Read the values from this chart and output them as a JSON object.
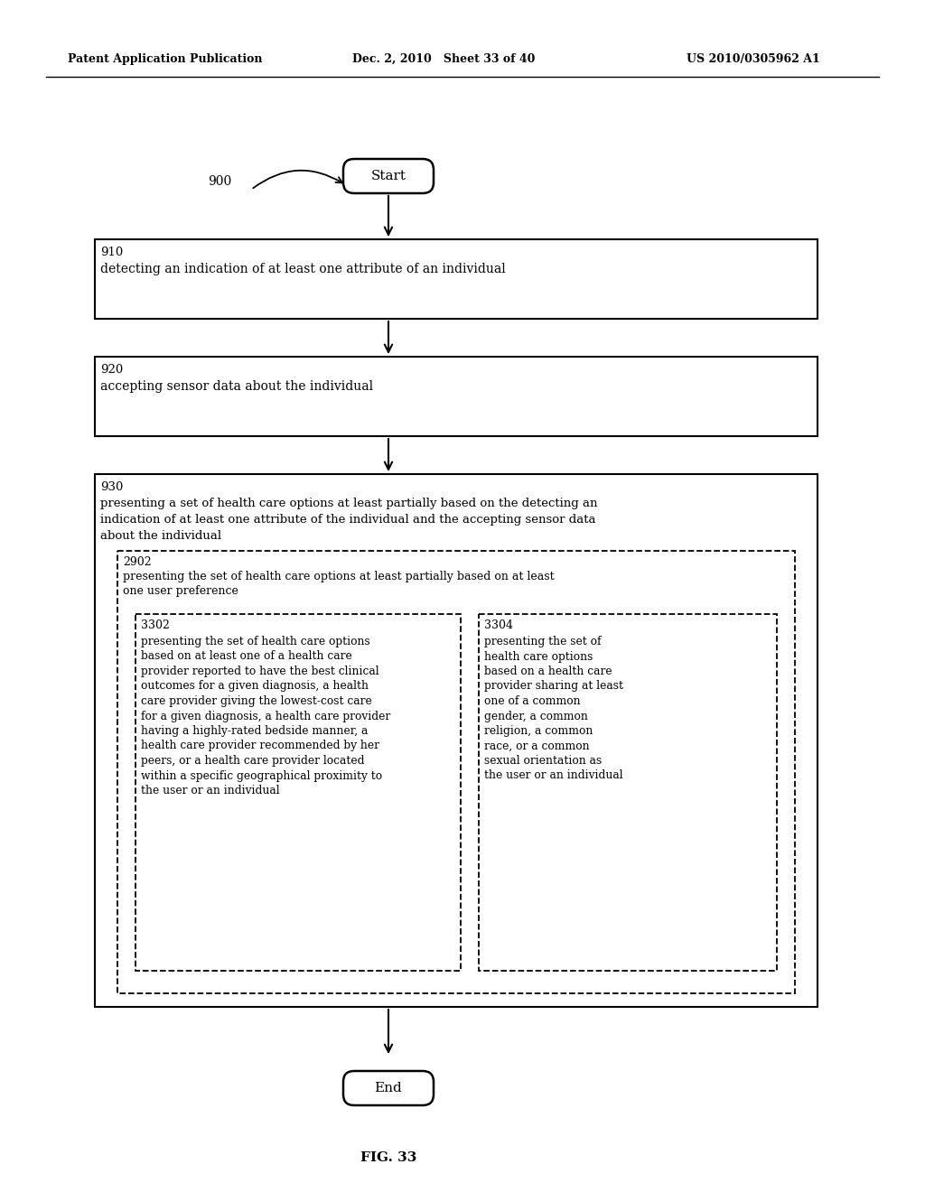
{
  "header_left": "Patent Application Publication",
  "header_mid": "Dec. 2, 2010   Sheet 33 of 40",
  "header_right": "US 2010/0305962 A1",
  "fig_label": "FIG. 33",
  "label_900": "900",
  "start_text": "Start",
  "end_text": "End",
  "box910_label": "910",
  "box910_text": "detecting an indication of at least one attribute of an individual",
  "box920_label": "920",
  "box920_text": "accepting sensor data about the individual",
  "box930_label": "930",
  "box930_text1": "presenting a set of health care options at least partially based on the detecting an",
  "box930_text2": "indication of at least one attribute of the individual and the accepting sensor data",
  "box930_text3": "about the individual",
  "box2902_label": "2902",
  "box2902_text1": "presenting the set of health care options at least partially based on at least",
  "box2902_text2": "one user preference",
  "box3302_label": "3302",
  "box3302_lines": [
    "presenting the set of health care options",
    "based on at least one of a health care",
    "provider reported to have the best clinical",
    "outcomes for a given diagnosis, a health",
    "care provider giving the lowest-cost care",
    "for a given diagnosis, a health care provider",
    "having a highly-rated bedside manner, a",
    "health care provider recommended by her",
    "peers, or a health care provider located",
    "within a specific geographical proximity to",
    "the user or an individual"
  ],
  "box3304_label": "3304",
  "box3304_lines": [
    "presenting the set of",
    "health care options",
    "based on a health care",
    "provider sharing at least",
    "one of a common",
    "gender, a common",
    "religion, a common",
    "race, or a common",
    "sexual orientation as",
    "the user or an individual"
  ],
  "bg_color": "#ffffff",
  "text_color": "#000000",
  "line_color": "#000000"
}
